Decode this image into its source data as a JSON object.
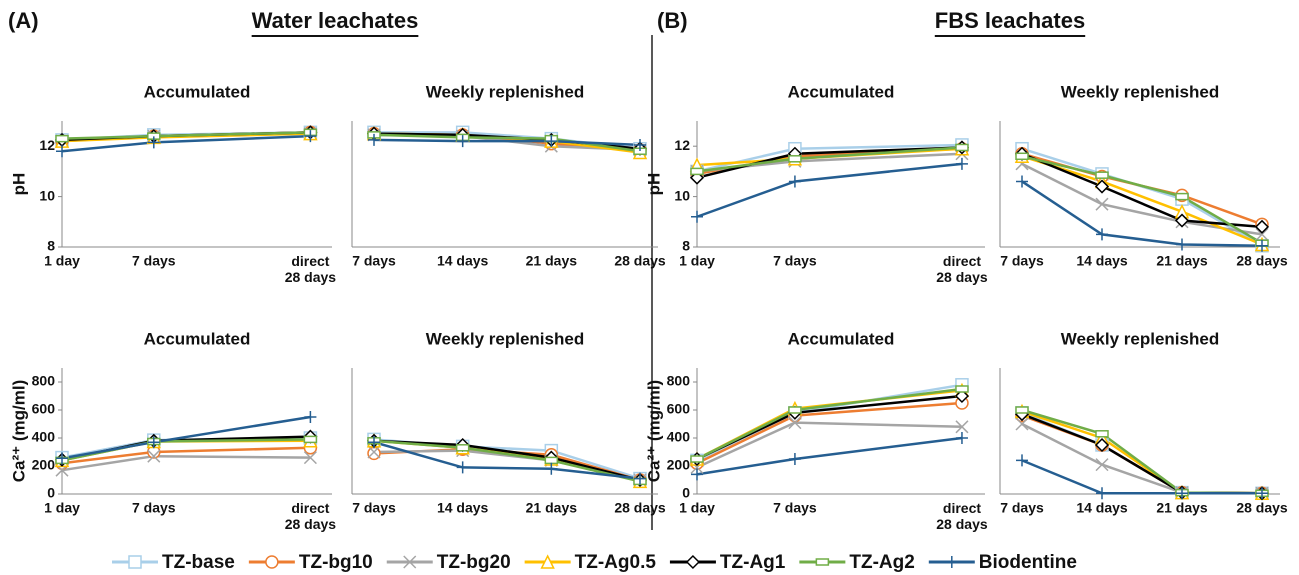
{
  "sections": [
    {
      "label": "(A)",
      "title": "Water leachates"
    },
    {
      "label": "(B)",
      "title": "FBS leachates"
    }
  ],
  "legend": {
    "series": [
      {
        "name": "TZ-base",
        "color": "#a9cfe9",
        "marker": "square"
      },
      {
        "name": "TZ-bg10",
        "color": "#ed7d31",
        "marker": "circle"
      },
      {
        "name": "TZ-bg20",
        "color": "#a5a5a5",
        "marker": "x"
      },
      {
        "name": "TZ-Ag0.5",
        "color": "#ffc000",
        "marker": "triangle"
      },
      {
        "name": "TZ-Ag1",
        "color": "#000000",
        "marker": "diamond"
      },
      {
        "name": "TZ-Ag2",
        "color": "#70ad47",
        "marker": "bar"
      },
      {
        "name": "Biodentine",
        "color": "#255e91",
        "marker": "plus"
      }
    ]
  },
  "chart_data": [
    {
      "type": "line",
      "title": "Accumulated",
      "ylabel": "pH",
      "categories": [
        "1 day",
        "7 days",
        "direct\n28 days"
      ],
      "ylim": [
        8,
        13
      ],
      "yticks": [
        8,
        10,
        12
      ],
      "series": [
        {
          "values": [
            12.25,
            12.45,
            12.55
          ]
        },
        {
          "values": [
            12.2,
            12.4,
            12.55
          ]
        },
        {
          "values": [
            12.2,
            12.4,
            12.5
          ]
        },
        {
          "values": [
            12.2,
            12.35,
            12.5
          ]
        },
        {
          "values": [
            12.25,
            12.4,
            12.55
          ]
        },
        {
          "values": [
            12.3,
            12.4,
            12.55
          ]
        },
        {
          "values": [
            11.8,
            12.15,
            12.4
          ]
        }
      ]
    },
    {
      "type": "line",
      "title": "Weekly replenished",
      "categories": [
        "7 days",
        "14 days",
        "21 days",
        "28 days"
      ],
      "ylim": [
        8,
        13
      ],
      "series": [
        {
          "values": [
            12.55,
            12.55,
            12.3,
            11.9
          ]
        },
        {
          "values": [
            12.5,
            12.45,
            12.1,
            11.85
          ]
        },
        {
          "values": [
            12.45,
            12.4,
            12.0,
            11.85
          ]
        },
        {
          "values": [
            12.5,
            12.45,
            12.2,
            11.75
          ]
        },
        {
          "values": [
            12.5,
            12.45,
            12.25,
            11.9
          ]
        },
        {
          "values": [
            12.45,
            12.35,
            12.3,
            11.8
          ]
        },
        {
          "values": [
            12.25,
            12.2,
            12.2,
            12.05
          ]
        }
      ]
    },
    {
      "type": "line",
      "title": "Accumulated",
      "ylabel": "Ca²⁺ (mg/ml)",
      "categories": [
        "1 day",
        "7 days",
        "direct\n28 days"
      ],
      "ylim": [
        0,
        900
      ],
      "yticks": [
        0,
        200,
        400,
        600,
        800
      ],
      "series": [
        {
          "values": [
            260,
            385,
            400
          ]
        },
        {
          "values": [
            220,
            300,
            330
          ]
        },
        {
          "values": [
            170,
            270,
            260
          ]
        },
        {
          "values": [
            240,
            375,
            380
          ]
        },
        {
          "values": [
            245,
            380,
            410
          ]
        },
        {
          "values": [
            240,
            375,
            390
          ]
        },
        {
          "values": [
            255,
            370,
            550
          ]
        }
      ]
    },
    {
      "type": "line",
      "title": "Weekly replenished",
      "categories": [
        "7 days",
        "14 days",
        "21 days",
        "28 days"
      ],
      "ylim": [
        0,
        900
      ],
      "series": [
        {
          "values": [
            390,
            340,
            310,
            110
          ]
        },
        {
          "values": [
            290,
            320,
            280,
            100
          ]
        },
        {
          "values": [
            300,
            310,
            240,
            100
          ]
        },
        {
          "values": [
            380,
            330,
            250,
            90
          ]
        },
        {
          "values": [
            380,
            350,
            260,
            100
          ]
        },
        {
          "values": [
            380,
            330,
            240,
            90
          ]
        },
        {
          "values": [
            370,
            190,
            180,
            110
          ]
        }
      ]
    },
    {
      "type": "line",
      "title": "Accumulated",
      "ylabel": "pH",
      "categories": [
        "1 day",
        "7 days",
        "direct\n28 days"
      ],
      "ylim": [
        8,
        13
      ],
      "yticks": [
        8,
        10,
        12
      ],
      "series": [
        {
          "values": [
            11.0,
            11.9,
            12.05
          ]
        },
        {
          "values": [
            10.9,
            11.6,
            11.9
          ]
        },
        {
          "values": [
            11.0,
            11.4,
            11.7
          ]
        },
        {
          "values": [
            11.25,
            11.5,
            11.9
          ]
        },
        {
          "values": [
            10.75,
            11.7,
            11.95
          ]
        },
        {
          "values": [
            11.0,
            11.5,
            11.95
          ]
        },
        {
          "values": [
            9.2,
            10.6,
            11.3
          ]
        }
      ]
    },
    {
      "type": "line",
      "title": "Weekly replenished",
      "categories": [
        "7 days",
        "14 days",
        "21 days",
        "28 days"
      ],
      "ylim": [
        8,
        13
      ],
      "series": [
        {
          "values": [
            11.9,
            10.9,
            9.9,
            8.05
          ]
        },
        {
          "values": [
            11.7,
            10.8,
            10.05,
            8.9
          ]
        },
        {
          "values": [
            11.3,
            9.7,
            9.0,
            8.5
          ]
        },
        {
          "values": [
            11.6,
            10.6,
            9.4,
            8.1
          ]
        },
        {
          "values": [
            11.7,
            10.4,
            9.05,
            8.8
          ]
        },
        {
          "values": [
            11.6,
            10.85,
            10.0,
            8.15
          ]
        },
        {
          "values": [
            10.6,
            8.5,
            8.1,
            8.05
          ]
        }
      ]
    },
    {
      "type": "line",
      "title": "Accumulated",
      "ylabel": "Ca²⁺ (mg/ml)",
      "categories": [
        "1 day",
        "7 days",
        "direct\n28 days"
      ],
      "ylim": [
        0,
        900
      ],
      "yticks": [
        0,
        200,
        400,
        600,
        800
      ],
      "series": [
        {
          "values": [
            240,
            580,
            780
          ]
        },
        {
          "values": [
            220,
            560,
            650
          ]
        },
        {
          "values": [
            190,
            510,
            480
          ]
        },
        {
          "values": [
            250,
            610,
            740
          ]
        },
        {
          "values": [
            250,
            580,
            700
          ]
        },
        {
          "values": [
            250,
            600,
            750
          ]
        },
        {
          "values": [
            140,
            250,
            400
          ]
        }
      ]
    },
    {
      "type": "line",
      "title": "Weekly replenished",
      "categories": [
        "7 days",
        "14 days",
        "21 days",
        "28 days"
      ],
      "ylim": [
        0,
        900
      ],
      "series": [
        {
          "values": [
            580,
            350,
            10,
            5
          ]
        },
        {
          "values": [
            560,
            350,
            10,
            5
          ]
        },
        {
          "values": [
            500,
            210,
            10,
            5
          ]
        },
        {
          "values": [
            590,
            400,
            10,
            5
          ]
        },
        {
          "values": [
            570,
            350,
            10,
            5
          ]
        },
        {
          "values": [
            600,
            430,
            10,
            5
          ]
        },
        {
          "values": [
            240,
            5,
            5,
            5
          ]
        }
      ]
    }
  ]
}
